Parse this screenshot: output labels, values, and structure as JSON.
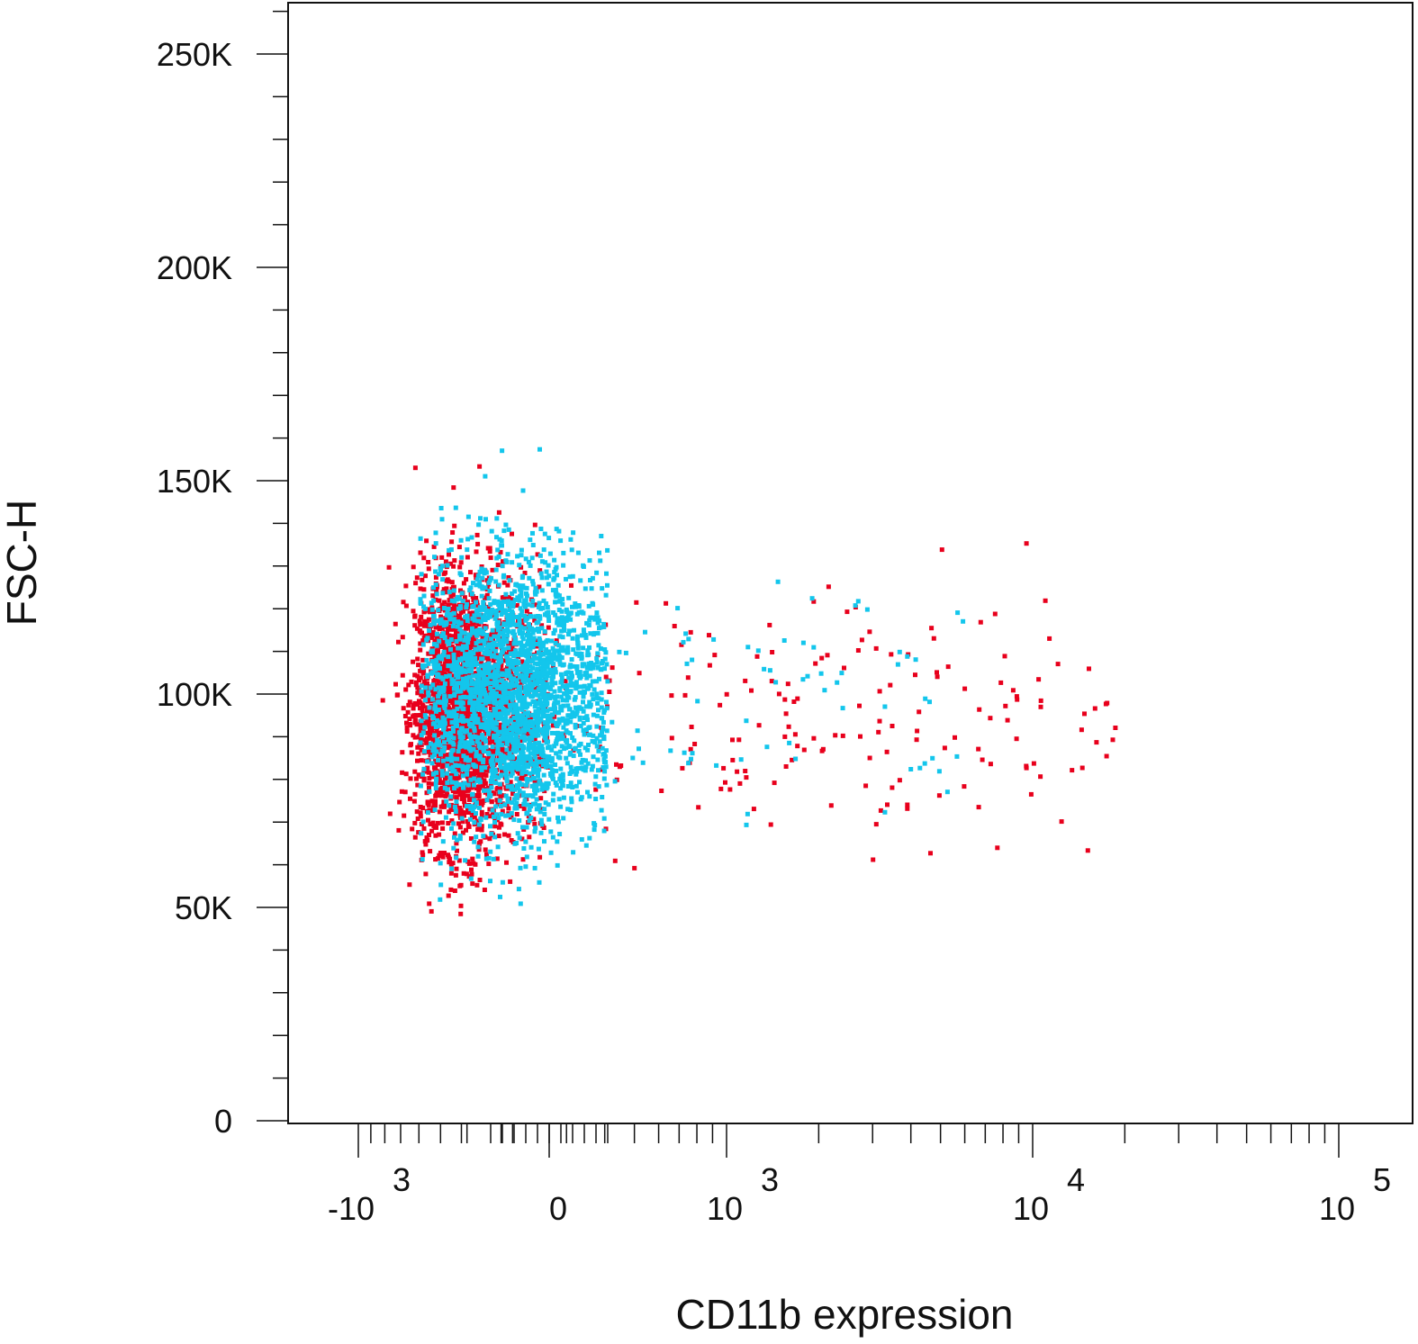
{
  "chart_data": {
    "type": "scatter",
    "xlabel": "CD11b expression",
    "ylabel": "FSC-H",
    "x_scale": "biexponential",
    "y_scale": "linear",
    "ylim": [
      0,
      262144
    ],
    "xlim": [
      -1500,
      100000
    ],
    "grid": false,
    "legend": "none",
    "y_ticks": [
      {
        "value": 0,
        "label": "0"
      },
      {
        "value": 50000,
        "label": "50K"
      },
      {
        "value": 100000,
        "label": "100K"
      },
      {
        "value": 150000,
        "label": "150K"
      },
      {
        "value": 200000,
        "label": "200K"
      },
      {
        "value": 250000,
        "label": "250K"
      }
    ],
    "x_ticks": [
      {
        "value": -1000,
        "base": "-10",
        "exp": "3"
      },
      {
        "value": 0,
        "base": "0",
        "exp": ""
      },
      {
        "value": 1000,
        "base": "10",
        "exp": "3"
      },
      {
        "value": 10000,
        "base": "10",
        "exp": "4"
      },
      {
        "value": 100000,
        "base": "10",
        "exp": "5"
      }
    ],
    "series": [
      {
        "color": "#e8001c",
        "events": 2600,
        "core": {
          "x_center": -400,
          "x_spread": 110,
          "y_center": 96000,
          "y_spread": 16000
        },
        "tail": {
          "x_min": 100,
          "x_max": 19000,
          "y_center": 95000,
          "y_spread": 14000,
          "fraction": 0.12
        }
      },
      {
        "color": "#13c6ec",
        "events": 2600,
        "core": {
          "x_center": -60,
          "x_spread": 120,
          "y_center": 100000,
          "y_spread": 16000
        },
        "tail": {
          "x_min": 100,
          "x_max": 6000,
          "y_center": 100000,
          "y_spread": 15000,
          "fraction": 0.05
        }
      }
    ]
  }
}
